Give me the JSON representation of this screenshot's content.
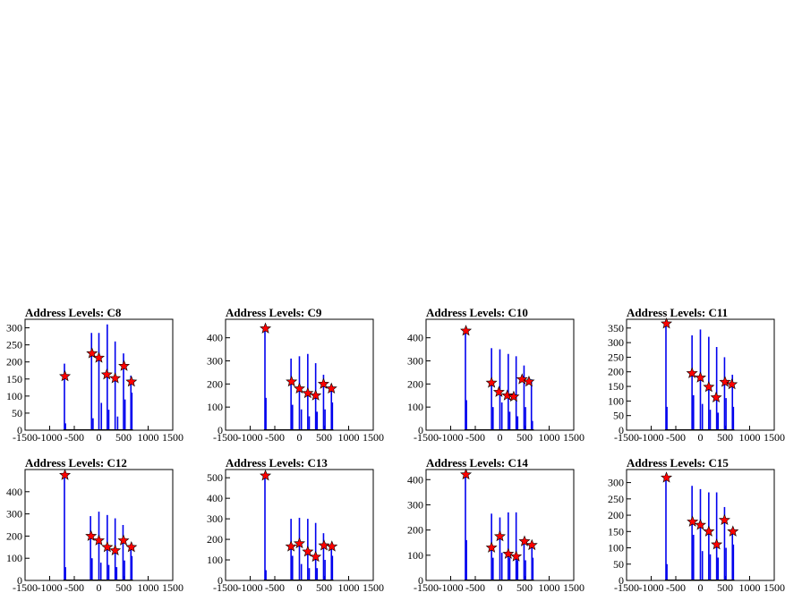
{
  "chart_data": [
    {
      "type": "bar",
      "title": "Address Levels: C8",
      "xlim": [
        -1500,
        1500
      ],
      "ylim": [
        0,
        325
      ],
      "yticks": [
        0,
        50,
        100,
        150,
        200,
        250,
        300
      ],
      "xticks": [
        -1500,
        -1000,
        -500,
        0,
        500,
        1000,
        1500
      ],
      "bars": [
        [
          -700,
          195
        ],
        [
          -680,
          20
        ],
        [
          -150,
          285
        ],
        [
          -120,
          35
        ],
        [
          0,
          285
        ],
        [
          50,
          80
        ],
        [
          170,
          310
        ],
        [
          200,
          60
        ],
        [
          330,
          260
        ],
        [
          380,
          40
        ],
        [
          500,
          225
        ],
        [
          530,
          90
        ],
        [
          650,
          160
        ],
        [
          670,
          110
        ]
      ],
      "peaks": [
        [
          -690,
          158
        ],
        [
          -140,
          225
        ],
        [
          0,
          212
        ],
        [
          160,
          163
        ],
        [
          330,
          152
        ],
        [
          510,
          188
        ],
        [
          660,
          142
        ]
      ]
    },
    {
      "type": "bar",
      "title": "Address Levels: C9",
      "xlim": [
        -1500,
        1500
      ],
      "ylim": [
        0,
        480
      ],
      "yticks": [
        0,
        100,
        200,
        300,
        400
      ],
      "xticks": [
        -1500,
        -1000,
        -500,
        0,
        500,
        1000,
        1500
      ],
      "bars": [
        [
          -700,
          440
        ],
        [
          -680,
          140
        ],
        [
          -170,
          310
        ],
        [
          -140,
          110
        ],
        [
          0,
          320
        ],
        [
          40,
          90
        ],
        [
          170,
          330
        ],
        [
          200,
          60
        ],
        [
          330,
          290
        ],
        [
          360,
          80
        ],
        [
          490,
          240
        ],
        [
          520,
          90
        ],
        [
          650,
          180
        ],
        [
          670,
          120
        ]
      ],
      "peaks": [
        [
          -690,
          440
        ],
        [
          -160,
          210
        ],
        [
          0,
          180
        ],
        [
          170,
          160
        ],
        [
          330,
          150
        ],
        [
          490,
          200
        ],
        [
          650,
          180
        ]
      ]
    },
    {
      "type": "bar",
      "title": "Address Levels: C10",
      "xlim": [
        -1500,
        1500
      ],
      "ylim": [
        0,
        480
      ],
      "yticks": [
        0,
        100,
        200,
        300,
        400
      ],
      "xticks": [
        -1500,
        -1000,
        -500,
        0,
        500,
        1000,
        1500
      ],
      "bars": [
        [
          -700,
          430
        ],
        [
          -680,
          130
        ],
        [
          -170,
          355
        ],
        [
          -140,
          100
        ],
        [
          0,
          350
        ],
        [
          40,
          120
        ],
        [
          170,
          330
        ],
        [
          200,
          80
        ],
        [
          330,
          320
        ],
        [
          360,
          60
        ],
        [
          490,
          280
        ],
        [
          520,
          100
        ],
        [
          640,
          220
        ],
        [
          660,
          40
        ]
      ],
      "peaks": [
        [
          -690,
          430
        ],
        [
          -170,
          205
        ],
        [
          -20,
          165
        ],
        [
          150,
          150
        ],
        [
          280,
          145
        ],
        [
          450,
          220
        ],
        [
          590,
          210
        ]
      ]
    },
    {
      "type": "bar",
      "title": "Address Levels: C11",
      "xlim": [
        -1500,
        1500
      ],
      "ylim": [
        0,
        380
      ],
      "yticks": [
        0,
        50,
        100,
        150,
        200,
        250,
        300,
        350
      ],
      "xticks": [
        -1500,
        -1000,
        -500,
        0,
        500,
        1000,
        1500
      ],
      "bars": [
        [
          -700,
          365
        ],
        [
          -680,
          80
        ],
        [
          -170,
          325
        ],
        [
          -140,
          120
        ],
        [
          0,
          345
        ],
        [
          40,
          90
        ],
        [
          170,
          320
        ],
        [
          200,
          70
        ],
        [
          330,
          285
        ],
        [
          360,
          60
        ],
        [
          490,
          250
        ],
        [
          520,
          110
        ],
        [
          650,
          190
        ],
        [
          670,
          80
        ]
      ],
      "peaks": [
        [
          -690,
          365
        ],
        [
          -170,
          195
        ],
        [
          0,
          180
        ],
        [
          170,
          148
        ],
        [
          320,
          112
        ],
        [
          500,
          165
        ],
        [
          640,
          157
        ]
      ]
    },
    {
      "type": "bar",
      "title": "Address Levels: C12",
      "xlim": [
        -1500,
        1500
      ],
      "ylim": [
        0,
        500
      ],
      "yticks": [
        0,
        100,
        200,
        300,
        400
      ],
      "xticks": [
        -1500,
        -1000,
        -500,
        0,
        500,
        1000,
        1500
      ],
      "bars": [
        [
          -700,
          475
        ],
        [
          -680,
          60
        ],
        [
          -170,
          290
        ],
        [
          -140,
          100
        ],
        [
          0,
          310
        ],
        [
          40,
          80
        ],
        [
          170,
          295
        ],
        [
          200,
          70
        ],
        [
          330,
          280
        ],
        [
          360,
          60
        ],
        [
          490,
          250
        ],
        [
          520,
          90
        ],
        [
          650,
          160
        ],
        [
          670,
          110
        ]
      ],
      "peaks": [
        [
          -690,
          475
        ],
        [
          -160,
          200
        ],
        [
          0,
          180
        ],
        [
          170,
          150
        ],
        [
          330,
          135
        ],
        [
          500,
          180
        ],
        [
          660,
          150
        ]
      ]
    },
    {
      "type": "bar",
      "title": "Address Levels: C13",
      "xlim": [
        -1500,
        1500
      ],
      "ylim": [
        0,
        540
      ],
      "yticks": [
        0,
        100,
        200,
        300,
        400,
        500
      ],
      "xticks": [
        -1500,
        -1000,
        -500,
        0,
        500,
        1000,
        1500
      ],
      "bars": [
        [
          -700,
          510
        ],
        [
          -680,
          50
        ],
        [
          -170,
          300
        ],
        [
          -140,
          120
        ],
        [
          0,
          305
        ],
        [
          40,
          80
        ],
        [
          170,
          300
        ],
        [
          200,
          60
        ],
        [
          330,
          280
        ],
        [
          360,
          60
        ],
        [
          490,
          230
        ],
        [
          520,
          100
        ],
        [
          650,
          170
        ],
        [
          670,
          120
        ]
      ],
      "peaks": [
        [
          -690,
          510
        ],
        [
          -170,
          165
        ],
        [
          0,
          180
        ],
        [
          170,
          140
        ],
        [
          330,
          115
        ],
        [
          500,
          170
        ],
        [
          660,
          165
        ]
      ]
    },
    {
      "type": "bar",
      "title": "Address Levels: C14",
      "xlim": [
        -1500,
        1500
      ],
      "ylim": [
        0,
        440
      ],
      "yticks": [
        0,
        100,
        200,
        300,
        400
      ],
      "xticks": [
        -1500,
        -1000,
        -500,
        0,
        500,
        1000,
        1500
      ],
      "bars": [
        [
          -700,
          420
        ],
        [
          -680,
          160
        ],
        [
          -170,
          265
        ],
        [
          -140,
          90
        ],
        [
          0,
          250
        ],
        [
          40,
          110
        ],
        [
          170,
          270
        ],
        [
          200,
          90
        ],
        [
          330,
          270
        ],
        [
          360,
          80
        ],
        [
          490,
          165
        ],
        [
          520,
          80
        ],
        [
          650,
          145
        ],
        [
          670,
          90
        ]
      ],
      "peaks": [
        [
          -690,
          420
        ],
        [
          -170,
          130
        ],
        [
          0,
          175
        ],
        [
          170,
          105
        ],
        [
          330,
          95
        ],
        [
          500,
          155
        ],
        [
          650,
          140
        ]
      ]
    },
    {
      "type": "bar",
      "title": "Address Levels: C15",
      "xlim": [
        -1500,
        1500
      ],
      "ylim": [
        0,
        340
      ],
      "yticks": [
        0,
        50,
        100,
        150,
        200,
        250,
        300
      ],
      "xticks": [
        -1500,
        -1000,
        -500,
        0,
        500,
        1000,
        1500
      ],
      "bars": [
        [
          -700,
          320
        ],
        [
          -680,
          50
        ],
        [
          -170,
          290
        ],
        [
          -140,
          140
        ],
        [
          0,
          280
        ],
        [
          40,
          90
        ],
        [
          170,
          270
        ],
        [
          200,
          80
        ],
        [
          330,
          270
        ],
        [
          360,
          70
        ],
        [
          490,
          225
        ],
        [
          520,
          100
        ],
        [
          650,
          160
        ],
        [
          670,
          110
        ]
      ],
      "peaks": [
        [
          -690,
          315
        ],
        [
          -160,
          180
        ],
        [
          0,
          170
        ],
        [
          170,
          150
        ],
        [
          330,
          110
        ],
        [
          490,
          185
        ],
        [
          660,
          150
        ]
      ]
    }
  ]
}
